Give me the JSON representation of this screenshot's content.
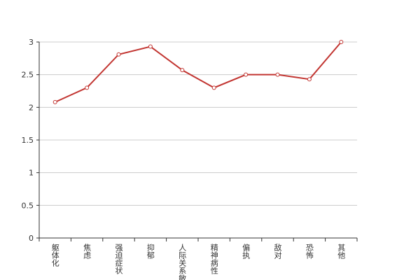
{
  "chart_data": {
    "type": "line",
    "categories": [
      "躯体化",
      "焦虑",
      "强迫症状",
      "抑郁",
      "人际关系敏感",
      "精神病性",
      "偏执",
      "敌对",
      "恐怖",
      "其他"
    ],
    "values": [
      2.08,
      2.3,
      2.81,
      2.93,
      2.57,
      2.3,
      2.5,
      2.5,
      2.43,
      3
    ],
    "color": "#c23531",
    "ylim": [
      0,
      3
    ],
    "yticks": [
      0,
      0.5,
      1,
      1.5,
      2,
      2.5,
      3
    ],
    "grid": true
  }
}
